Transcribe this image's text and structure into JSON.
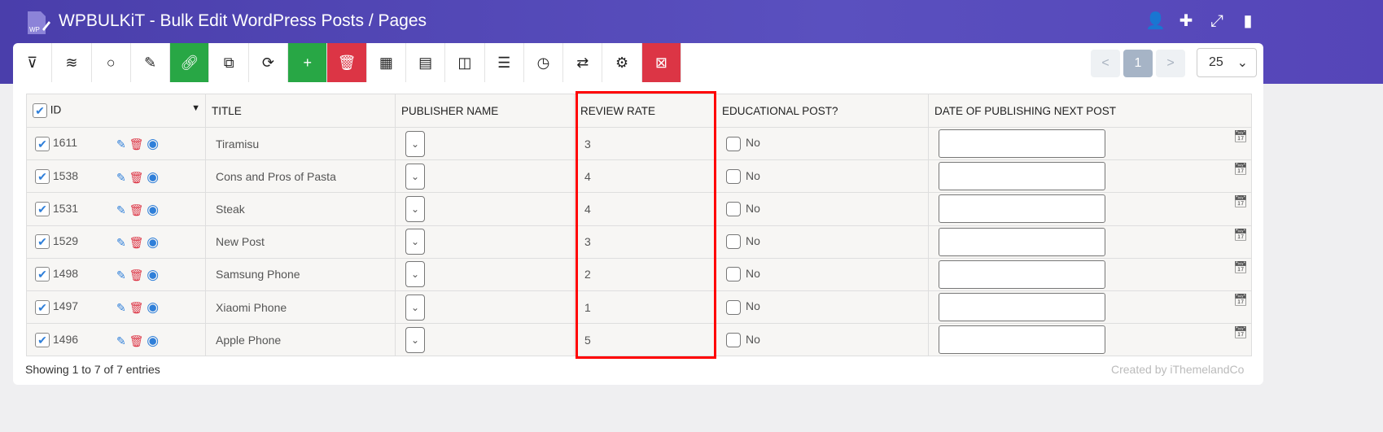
{
  "header": {
    "title": "WPBULKiT - Bulk Edit WordPress Posts / Pages",
    "logo_text": "WP",
    "icons": [
      "user-check-icon",
      "puzzle-icon",
      "fullscreen-icon",
      "book-icon"
    ]
  },
  "toolbar": {
    "buttons": [
      "filter",
      "layers",
      "search",
      "edit",
      "link",
      "copy",
      "refresh",
      "add",
      "delete",
      "table",
      "column-manager",
      "columns",
      "list",
      "history",
      "swap",
      "settings",
      "clear-selection"
    ]
  },
  "pagination": {
    "prev": "<",
    "current": "1",
    "next": ">",
    "per_page": "25"
  },
  "table": {
    "columns": [
      "ID",
      "TITLE",
      "PUBLISHER NAME",
      "REVIEW RATE",
      "EDUCATIONAL POST?",
      "DATE OF PUBLISHING NEXT POST"
    ],
    "rows": [
      {
        "id": "1611",
        "title": "Tiramisu",
        "review": "3",
        "edu": "No"
      },
      {
        "id": "1538",
        "title": "Cons and Pros of Pasta",
        "review": "4",
        "edu": "No"
      },
      {
        "id": "1531",
        "title": "Steak",
        "review": "4",
        "edu": "No"
      },
      {
        "id": "1529",
        "title": "New Post",
        "review": "3",
        "edu": "No"
      },
      {
        "id": "1498",
        "title": "Samsung Phone",
        "review": "2",
        "edu": "No"
      },
      {
        "id": "1497",
        "title": "Xiaomi Phone",
        "review": "1",
        "edu": "No"
      },
      {
        "id": "1496",
        "title": "Apple Phone",
        "review": "5",
        "edu": "No"
      }
    ]
  },
  "footer": {
    "showing": "Showing 1 to 7 of 7 entries",
    "credit": "Created by iThemelandCo"
  },
  "colors": {
    "header": "#4a3eab",
    "green": "#28a745",
    "red": "#dc3545",
    "highlight": "#ff0000"
  }
}
